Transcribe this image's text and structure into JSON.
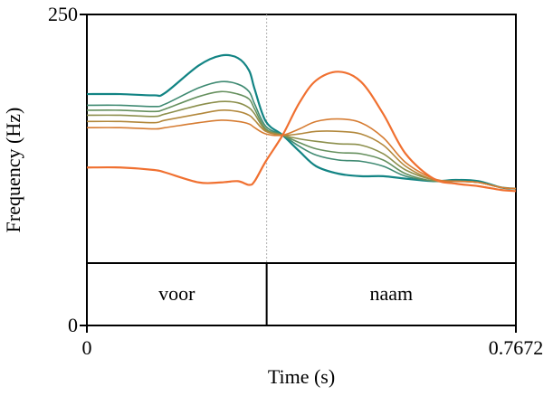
{
  "colors": {
    "axis": "#000000",
    "divider": "#b0b0b0",
    "series": [
      "#128484",
      "#3f8a72",
      "#66905e",
      "#8c8f4c",
      "#b2883c",
      "#d67c32",
      "#f07030"
    ]
  },
  "chart_data": {
    "type": "line",
    "title": "",
    "xlabel": "Time (s)",
    "ylabel": "Frequency (Hz)",
    "xlim": [
      0,
      0.7672
    ],
    "ylim": [
      0,
      250
    ],
    "x_ticks": [
      {
        "value": 0,
        "label": "0"
      },
      {
        "value": 0.7672,
        "label": "0.7672"
      }
    ],
    "y_ticks": [
      {
        "value": 0,
        "label": "0"
      },
      {
        "value": 250,
        "label": "250"
      }
    ],
    "segment_boundary": 0.3215,
    "segments": [
      {
        "label": "voor",
        "start": 0,
        "end": 0.3215
      },
      {
        "label": "naam",
        "start": 0.3215,
        "end": 0.7672
      }
    ],
    "series": [
      {
        "name": "contour-1",
        "x": [
          0,
          0.06,
          0.12,
          0.14,
          0.2,
          0.24,
          0.27,
          0.29,
          0.3,
          0.32,
          0.35,
          0.38,
          0.41,
          0.45,
          0.49,
          0.53,
          0.57,
          0.62,
          0.66,
          0.7,
          0.74,
          0.7672
        ],
        "y": [
          186,
          186,
          185,
          187,
          209,
          217,
          215,
          205,
          190,
          164,
          153,
          140,
          128,
          122,
          120,
          120,
          118,
          116,
          117,
          116,
          111,
          110
        ]
      },
      {
        "name": "contour-2",
        "x": [
          0,
          0.06,
          0.12,
          0.14,
          0.2,
          0.24,
          0.27,
          0.29,
          0.3,
          0.32,
          0.35,
          0.38,
          0.41,
          0.45,
          0.49,
          0.53,
          0.57,
          0.62,
          0.66,
          0.7,
          0.74,
          0.7672
        ],
        "y": [
          177,
          177,
          176,
          178,
          191,
          196,
          194,
          188,
          178,
          160,
          153,
          144,
          137,
          133,
          132,
          128,
          120,
          116,
          116,
          115,
          111,
          110
        ]
      },
      {
        "name": "contour-3",
        "x": [
          0,
          0.06,
          0.12,
          0.14,
          0.2,
          0.24,
          0.27,
          0.29,
          0.3,
          0.32,
          0.35,
          0.38,
          0.41,
          0.45,
          0.49,
          0.53,
          0.57,
          0.62,
          0.66,
          0.7,
          0.74,
          0.7672
        ],
        "y": [
          173,
          173,
          172,
          174,
          184,
          188,
          186,
          182,
          174,
          158,
          153,
          147,
          142,
          139,
          138,
          133,
          122,
          116,
          116,
          115,
          111,
          110
        ]
      },
      {
        "name": "contour-4",
        "x": [
          0,
          0.06,
          0.12,
          0.14,
          0.2,
          0.24,
          0.27,
          0.29,
          0.3,
          0.32,
          0.35,
          0.38,
          0.41,
          0.45,
          0.49,
          0.53,
          0.57,
          0.62,
          0.66,
          0.7,
          0.74,
          0.7672
        ],
        "y": [
          169,
          169,
          168,
          170,
          177,
          180,
          179,
          175,
          170,
          157,
          153,
          150,
          148,
          146,
          145,
          138,
          125,
          117,
          116,
          115,
          111,
          110
        ]
      },
      {
        "name": "contour-5",
        "x": [
          0,
          0.06,
          0.12,
          0.14,
          0.2,
          0.24,
          0.27,
          0.29,
          0.3,
          0.32,
          0.35,
          0.38,
          0.41,
          0.45,
          0.49,
          0.53,
          0.57,
          0.62,
          0.66,
          0.7,
          0.74,
          0.7672
        ],
        "y": [
          164,
          164,
          163,
          165,
          170,
          173,
          172,
          169,
          165,
          156,
          153,
          154,
          156,
          156,
          154,
          145,
          128,
          117,
          116,
          115,
          111,
          110
        ]
      },
      {
        "name": "contour-6",
        "x": [
          0,
          0.06,
          0.12,
          0.14,
          0.2,
          0.24,
          0.27,
          0.29,
          0.3,
          0.32,
          0.35,
          0.38,
          0.41,
          0.45,
          0.49,
          0.53,
          0.57,
          0.62,
          0.66,
          0.7,
          0.74,
          0.7672
        ],
        "y": [
          159,
          159,
          158,
          159,
          163,
          165,
          164,
          162,
          159,
          154,
          153,
          158,
          164,
          166,
          163,
          151,
          131,
          118,
          116,
          115,
          111,
          110
        ]
      },
      {
        "name": "contour-7",
        "x": [
          0,
          0.06,
          0.12,
          0.14,
          0.2,
          0.24,
          0.27,
          0.29,
          0.3,
          0.32,
          0.35,
          0.38,
          0.41,
          0.45,
          0.49,
          0.53,
          0.57,
          0.62,
          0.66,
          0.7,
          0.74,
          0.7672
        ],
        "y": [
          127,
          127,
          125,
          123,
          115,
          115,
          116,
          113,
          116,
          132,
          153,
          179,
          197,
          204,
          196,
          170,
          138,
          118,
          114,
          112,
          109,
          108
        ]
      }
    ]
  }
}
